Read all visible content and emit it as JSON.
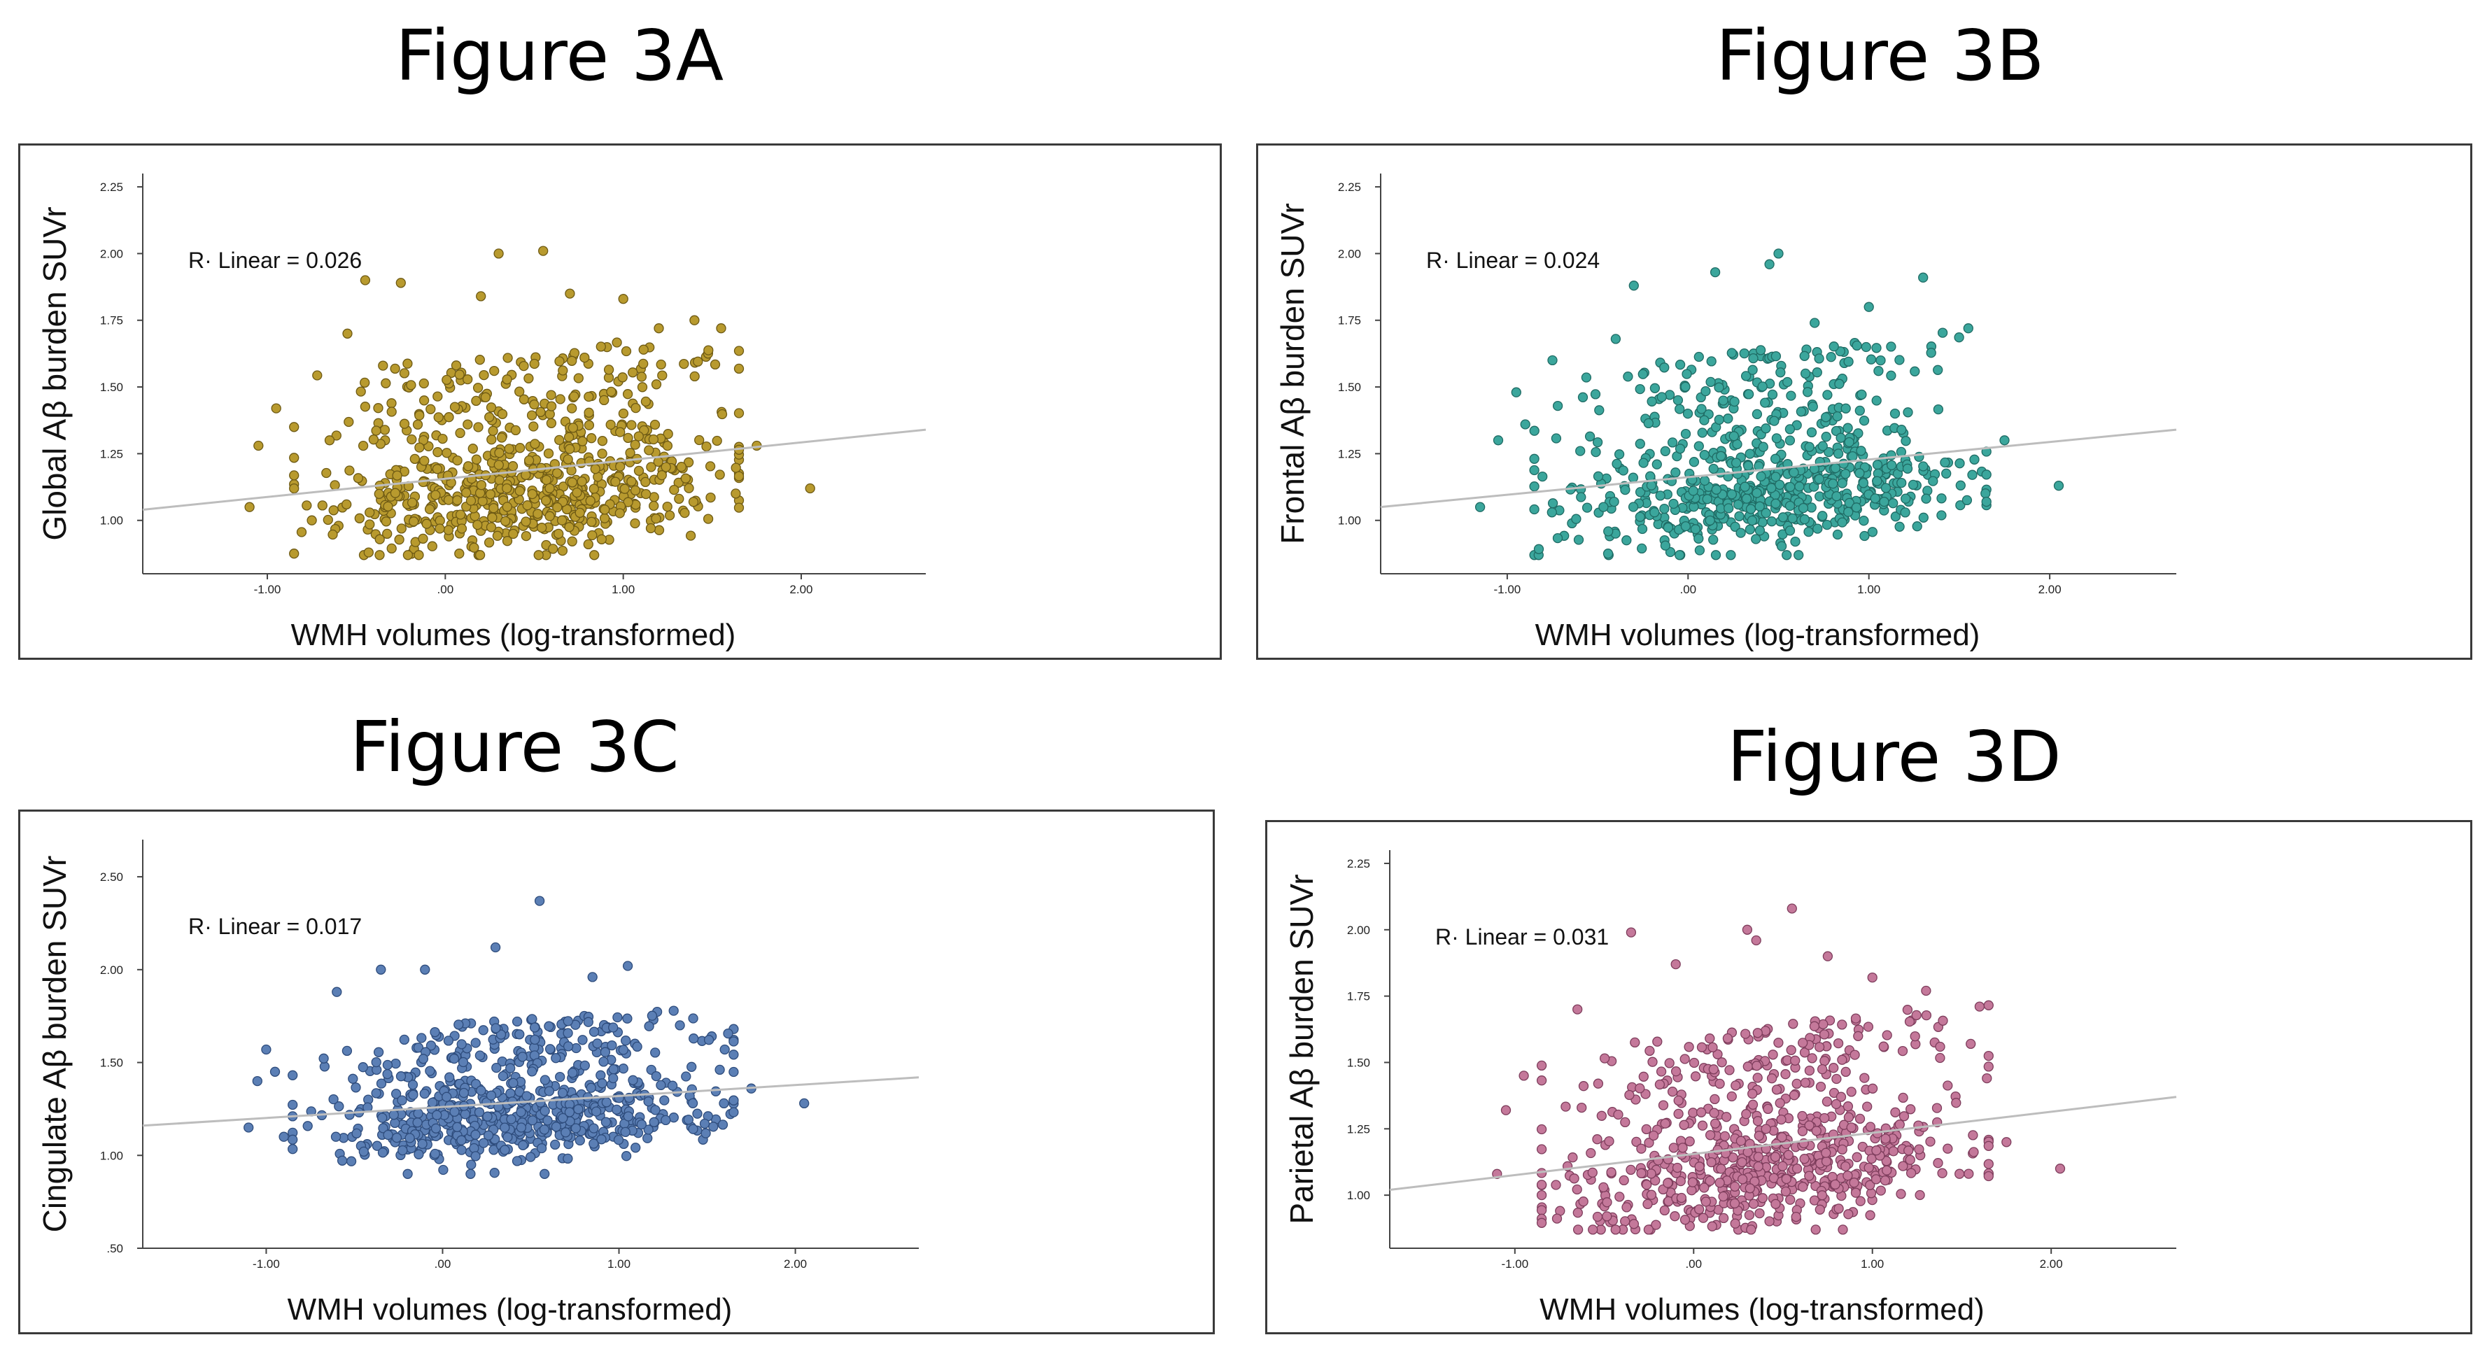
{
  "figures": [
    {
      "title": "Figure 3A"
    },
    {
      "title": "Figure 3B"
    },
    {
      "title": "Figure 3C"
    },
    {
      "title": "Figure 3D"
    }
  ],
  "chart_data": [
    {
      "type": "scatter",
      "title": "Figure 3A",
      "xlabel": "WMH volumes (log-transformed)",
      "ylabel": "Global Aβ burden SUVr",
      "annotation": "R· Linear = 0.026",
      "xlim": [
        -1.7,
        2.7
      ],
      "ylim": [
        0.8,
        2.3
      ],
      "xticks": [
        -1.0,
        0.0,
        1.0,
        2.0
      ],
      "xtick_labels": [
        "-1.00",
        ".00",
        "1.00",
        "2.00"
      ],
      "yticks": [
        1.0,
        1.25,
        1.5,
        1.75,
        2.0,
        2.25
      ],
      "ytick_labels": [
        "1.00",
        "1.25",
        "1.50",
        "1.75",
        "2.00",
        "2.25"
      ],
      "fit_line": {
        "x": [
          -1.7,
          2.7
        ],
        "y": [
          1.04,
          1.34
        ]
      },
      "point_color": "#b89a2e",
      "point_edge": "#6e5a14",
      "n_points": 700,
      "sample_points": {
        "x": [
          -1.1,
          -1.05,
          -0.95,
          -0.85,
          -0.75,
          -0.65,
          -0.55,
          -0.45,
          -0.35,
          -0.25,
          0.2,
          0.3,
          0.55,
          0.7,
          1.0,
          1.2,
          1.4,
          1.55,
          1.75,
          2.05
        ],
        "y": [
          1.05,
          1.28,
          1.42,
          1.35,
          1.0,
          1.3,
          1.7,
          1.9,
          1.58,
          1.89,
          1.84,
          2.0,
          2.01,
          1.85,
          1.83,
          1.72,
          1.75,
          1.72,
          1.28,
          1.12
        ]
      }
    },
    {
      "type": "scatter",
      "title": "Figure 3B",
      "xlabel": "WMH volumes (log-transformed)",
      "ylabel": "Frontal Aβ burden SUVr",
      "annotation": "R· Linear = 0.024",
      "xlim": [
        -1.7,
        2.7
      ],
      "ylim": [
        0.8,
        2.3
      ],
      "xticks": [
        -1.0,
        0.0,
        1.0,
        2.0
      ],
      "xtick_labels": [
        "-1.00",
        ".00",
        "1.00",
        "2.00"
      ],
      "yticks": [
        1.0,
        1.25,
        1.5,
        1.75,
        2.0,
        2.25
      ],
      "ytick_labels": [
        "1.00",
        "1.25",
        "1.50",
        "1.75",
        "2.00",
        "2.25"
      ],
      "fit_line": {
        "x": [
          -1.7,
          2.7
        ],
        "y": [
          1.05,
          1.34
        ]
      },
      "point_color": "#3ba69c",
      "point_edge": "#1f6b64",
      "n_points": 700,
      "sample_points": {
        "x": [
          -1.15,
          -1.05,
          -0.95,
          -0.9,
          -0.75,
          -0.4,
          -0.3,
          0.15,
          0.45,
          0.5,
          0.7,
          1.0,
          1.3,
          1.55,
          1.75,
          2.05
        ],
        "y": [
          1.05,
          1.3,
          1.48,
          1.36,
          1.6,
          1.68,
          1.88,
          1.93,
          1.96,
          2.0,
          1.74,
          1.8,
          1.91,
          1.72,
          1.3,
          1.13
        ]
      }
    },
    {
      "type": "scatter",
      "title": "Figure 3C",
      "xlabel": "WMH volumes (log-transformed)",
      "ylabel": "Cingulate Aβ burden SUVr",
      "annotation": "R· Linear = 0.017",
      "xlim": [
        -1.7,
        2.7
      ],
      "ylim": [
        0.5,
        2.7
      ],
      "xticks": [
        -1.0,
        0.0,
        1.0,
        2.0
      ],
      "xtick_labels": [
        "-1.00",
        ".00",
        "1.00",
        "2.00"
      ],
      "yticks": [
        0.5,
        1.0,
        1.5,
        2.0,
        2.5
      ],
      "ytick_labels": [
        ".50",
        "1.00",
        "1.50",
        "2.00",
        "2.50"
      ],
      "fit_line": {
        "x": [
          -1.7,
          2.7
        ],
        "y": [
          1.16,
          1.42
        ]
      },
      "point_color": "#5b7fb5",
      "point_edge": "#2e4c7c",
      "n_points": 700,
      "sample_points": {
        "x": [
          -1.1,
          -1.05,
          -1.0,
          -0.95,
          -0.9,
          -0.6,
          -0.35,
          -0.1,
          0.3,
          0.55,
          0.85,
          1.05,
          1.6,
          1.75,
          2.05
        ],
        "y": [
          1.15,
          1.4,
          1.57,
          1.45,
          1.1,
          1.88,
          2.0,
          2.0,
          2.12,
          2.37,
          1.96,
          2.02,
          1.57,
          1.36,
          1.28
        ]
      }
    },
    {
      "type": "scatter",
      "title": "Figure 3D",
      "xlabel": "WMH volumes (log-transformed)",
      "ylabel": "Parietal Aβ burden SUVr",
      "annotation": "R· Linear = 0.031",
      "xlim": [
        -1.7,
        2.7
      ],
      "ylim": [
        0.8,
        2.3
      ],
      "xticks": [
        -1.0,
        0.0,
        1.0,
        2.0
      ],
      "xtick_labels": [
        "-1.00",
        ".00",
        "1.00",
        "2.00"
      ],
      "yticks": [
        1.0,
        1.25,
        1.5,
        1.75,
        2.0,
        2.25
      ],
      "ytick_labels": [
        "1.00",
        "1.25",
        "1.50",
        "1.75",
        "2.00",
        "2.25"
      ],
      "fit_line": {
        "x": [
          -1.7,
          2.7
        ],
        "y": [
          1.02,
          1.37
        ]
      },
      "point_color": "#c4789a",
      "point_edge": "#7e3d5c",
      "n_points": 700,
      "sample_points": {
        "x": [
          -1.1,
          -1.05,
          -0.95,
          -0.85,
          -0.65,
          -0.35,
          -0.1,
          0.3,
          0.35,
          0.55,
          0.75,
          1.0,
          1.3,
          1.55,
          1.75,
          2.05
        ],
        "y": [
          1.08,
          1.32,
          1.45,
          1.0,
          1.7,
          1.99,
          1.87,
          2.0,
          1.96,
          2.08,
          1.9,
          1.82,
          1.77,
          1.57,
          1.2,
          1.1
        ]
      }
    }
  ]
}
